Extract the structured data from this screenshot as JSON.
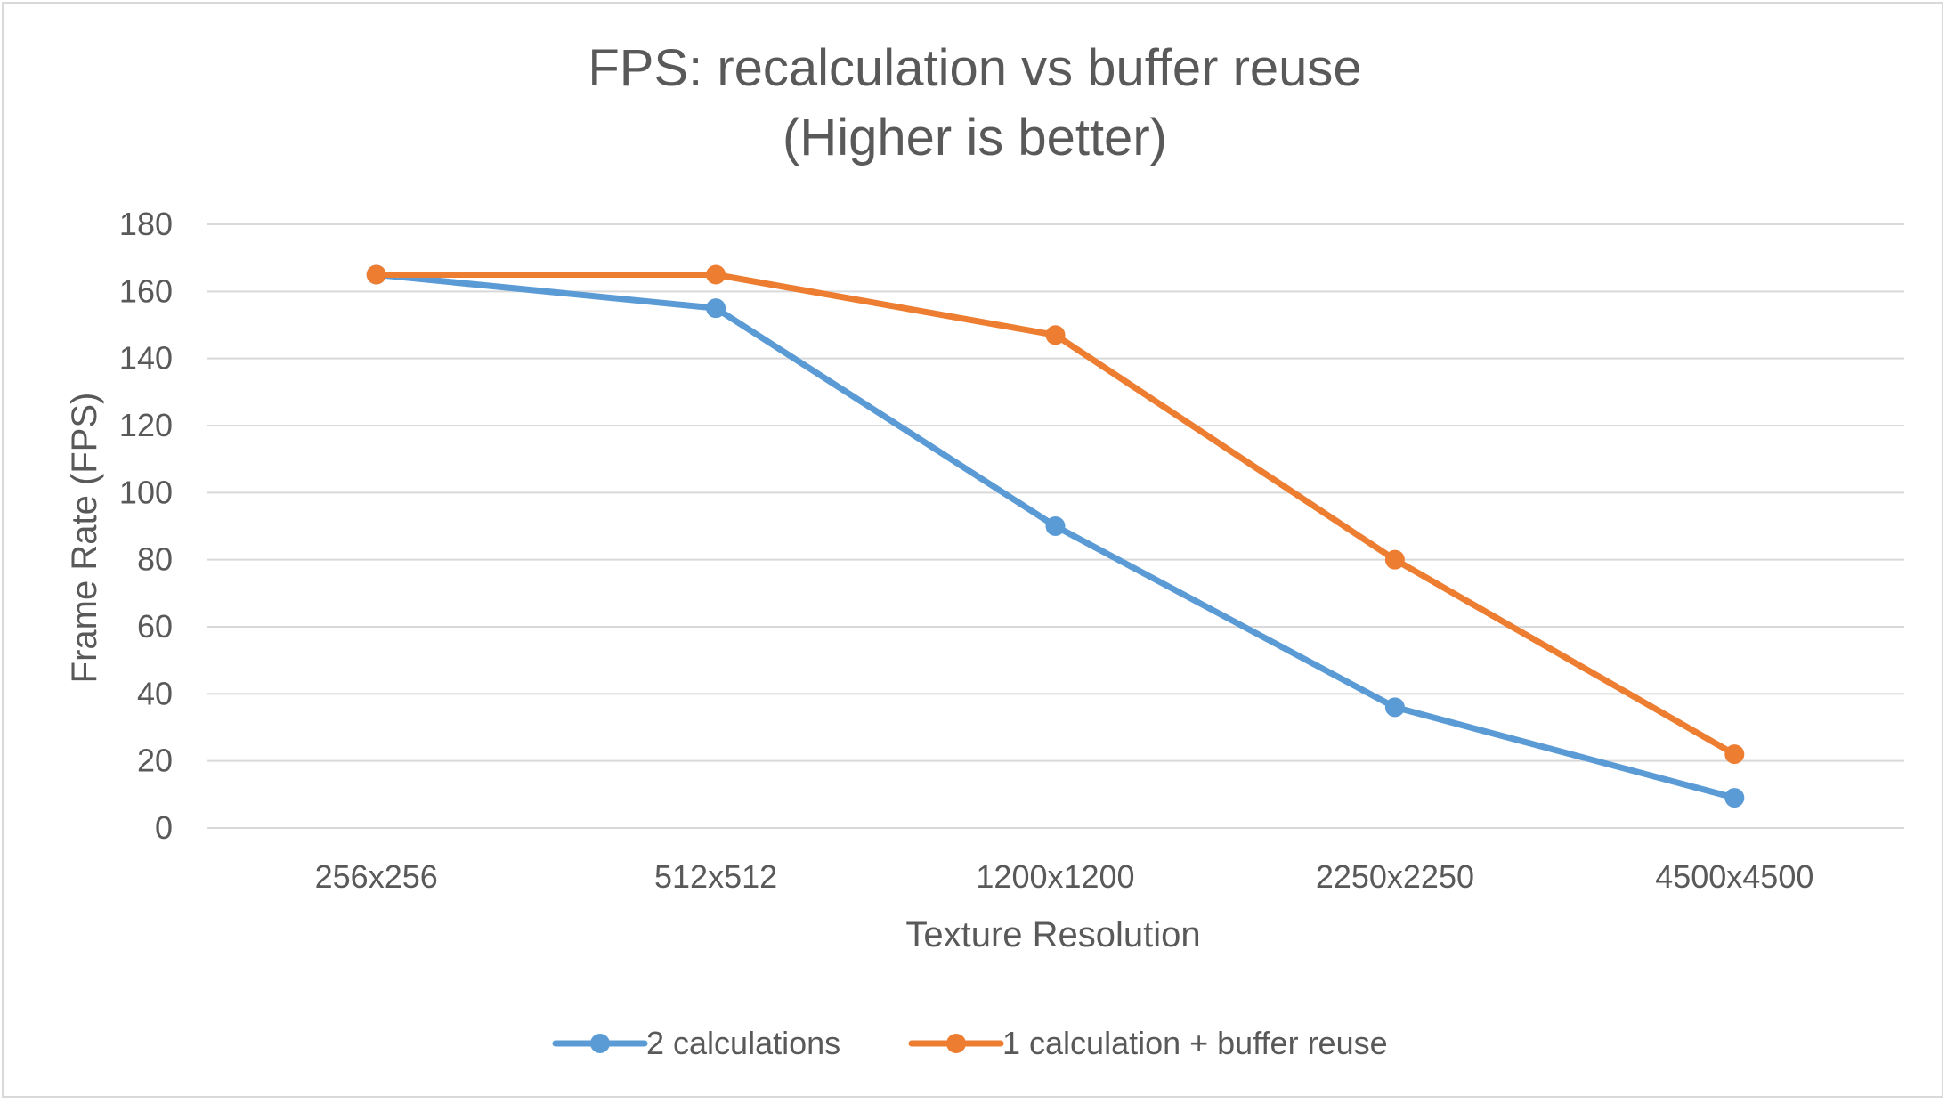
{
  "chart_data": {
    "type": "line",
    "title": "FPS: recalculation vs buffer reuse",
    "subtitle": "(Higher is better)",
    "xlabel": "Texture Resolution",
    "ylabel": "Frame Rate (FPS)",
    "categories": [
      "256x256",
      "512x512",
      "1200x1200",
      "2250x2250",
      "4500x4500"
    ],
    "ylim": [
      0,
      180
    ],
    "yticks": [
      0,
      20,
      40,
      60,
      80,
      100,
      120,
      140,
      160,
      180
    ],
    "ytick_labels": [
      "0",
      "20",
      "40",
      "60",
      "80",
      "100",
      "120",
      "140",
      "160",
      "180"
    ],
    "grid": "horizontal",
    "legend_position": "bottom",
    "series": [
      {
        "name": "2 calculations",
        "color": "#5b9bd5",
        "values": [
          165,
          155,
          90,
          36,
          9
        ]
      },
      {
        "name": "1 calculation + buffer reuse",
        "color": "#ed7d31",
        "values": [
          165,
          165,
          147,
          80,
          22
        ]
      }
    ]
  }
}
